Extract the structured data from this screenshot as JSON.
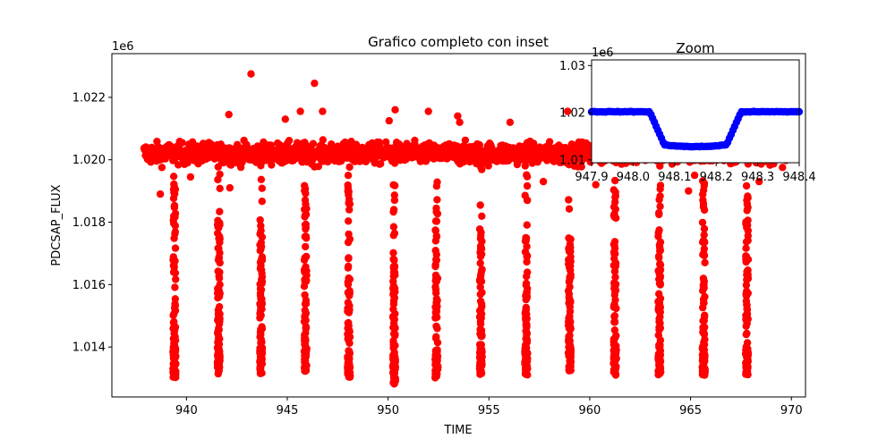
{
  "chart_data": [
    {
      "type": "scatter",
      "title": "Grafico completo con inset",
      "xlabel": "TIME",
      "ylabel": "PDCSAP_FLUX",
      "y_offset_label": "1e6",
      "xlim": [
        936.3,
        970.7
      ],
      "ylim": [
        1.0124,
        1.0234
      ],
      "xticks": [
        940,
        945,
        950,
        955,
        960,
        965,
        970
      ],
      "xtick_labels": [
        "940",
        "945",
        "950",
        "955",
        "960",
        "965",
        "970"
      ],
      "yticks": [
        1.014,
        1.016,
        1.018,
        1.02,
        1.022
      ],
      "ytick_labels": [
        "1.014",
        "1.016",
        "1.018",
        "1.020",
        "1.022"
      ],
      "color": "#ff0000",
      "baseline": 1.0202,
      "baseline_range": [
        1.0196,
        1.0209
      ],
      "time_range": [
        937.9,
        970.1
      ],
      "transit_times": [
        939.4,
        941.6,
        943.7,
        945.9,
        948.05,
        950.3,
        952.4,
        954.6,
        956.85,
        959.0,
        961.25,
        963.45,
        965.65,
        967.8
      ],
      "transit_depth": [
        1.013,
        1.0131,
        1.0131,
        1.0132,
        1.013,
        1.0128,
        1.013,
        1.0131,
        1.0131,
        1.0132,
        1.0131,
        1.0131,
        1.0131,
        1.0131
      ],
      "outliers": [
        {
          "x": 943.2,
          "y": 1.02275
        },
        {
          "x": 946.35,
          "y": 1.02245
        },
        {
          "x": 942.1,
          "y": 1.02145
        },
        {
          "x": 945.65,
          "y": 1.02155
        },
        {
          "x": 946.75,
          "y": 1.02155
        },
        {
          "x": 944.9,
          "y": 1.0213
        },
        {
          "x": 950.05,
          "y": 1.02125
        },
        {
          "x": 950.35,
          "y": 1.0216
        },
        {
          "x": 952.0,
          "y": 1.02155
        },
        {
          "x": 953.45,
          "y": 1.0214
        },
        {
          "x": 953.55,
          "y": 1.0212
        },
        {
          "x": 956.05,
          "y": 1.0212
        },
        {
          "x": 958.9,
          "y": 1.02155
        },
        {
          "x": 961.05,
          "y": 1.0214
        },
        {
          "x": 964.2,
          "y": 1.0212
        },
        {
          "x": 940.2,
          "y": 1.01945
        },
        {
          "x": 938.7,
          "y": 1.0189
        },
        {
          "x": 942.15,
          "y": 1.0191
        },
        {
          "x": 964.9,
          "y": 1.019
        },
        {
          "x": 965.2,
          "y": 1.0195
        },
        {
          "x": 957.7,
          "y": 1.0193
        },
        {
          "x": 960.3,
          "y": 1.0192
        },
        {
          "x": 968.4,
          "y": 1.0193
        }
      ]
    },
    {
      "type": "scatter",
      "title": "Zoom",
      "y_offset_label": "1e6",
      "xlim": [
        947.9,
        948.4
      ],
      "ylim": [
        1.0094,
        1.0312
      ],
      "xticks": [
        947.9,
        948.0,
        948.1,
        948.2,
        948.3,
        948.4
      ],
      "xtick_labels": [
        "947.9",
        "948.0",
        "948.1",
        "948.2",
        "948.3",
        "948.4"
      ],
      "yticks": [
        1.01,
        1.02,
        1.03
      ],
      "ytick_labels": [
        "1.01",
        "1.02",
        "1.03"
      ],
      "color": "#0000ff",
      "x": [
        947.9,
        948.3,
        948.4
      ],
      "y": [
        1.02,
        1.02,
        1.02
      ],
      "baseline": 1.0202,
      "transit_bottom": 1.0132,
      "ingress": [
        948.04,
        948.075
      ],
      "egress": [
        948.225,
        948.26
      ]
    }
  ]
}
